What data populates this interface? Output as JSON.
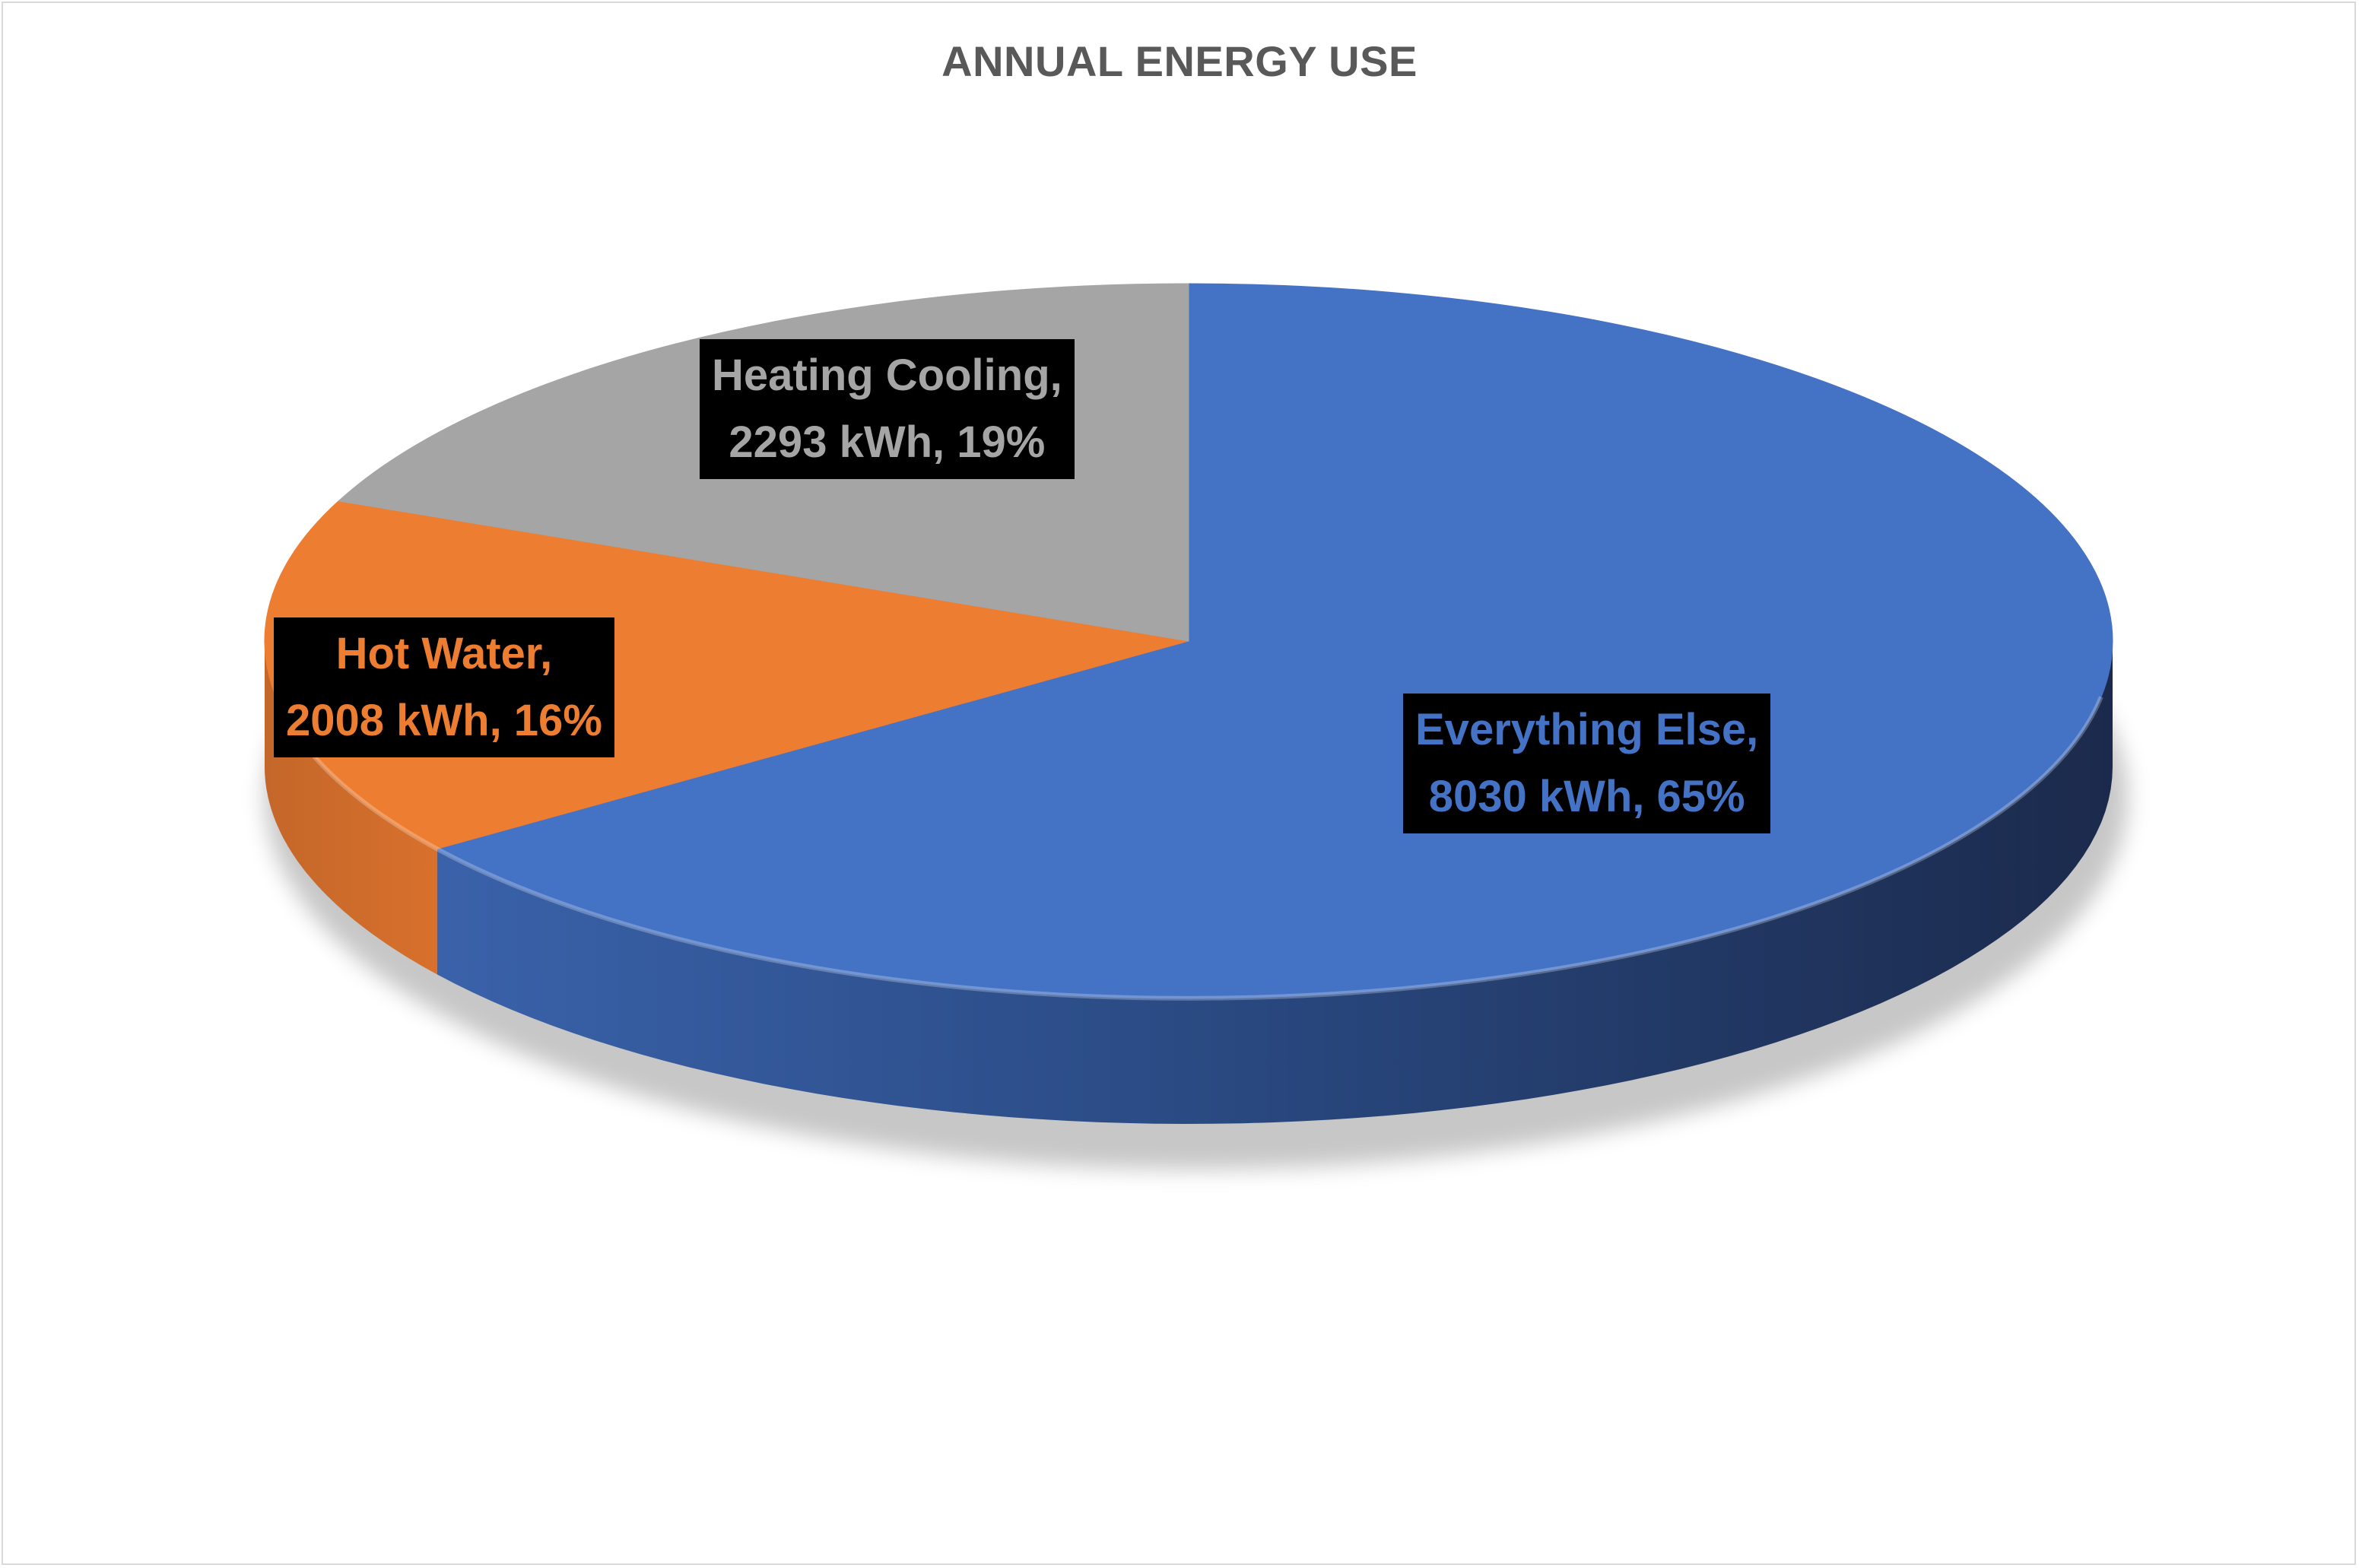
{
  "chart_data": {
    "type": "pie",
    "title": "ANNUAL ENERGY USE",
    "slices": [
      {
        "name": "Everything Else",
        "value": 8030,
        "percent": 65,
        "color": "#4472C4",
        "line1": "Everything Else,",
        "line2": "8030 kWh, 65%"
      },
      {
        "name": "Hot Water",
        "value": 2008,
        "percent": 16,
        "color": "#ED7D31",
        "line1": "Hot Water,",
        "line2": "2008 kWh, 16%"
      },
      {
        "name": "Heating Cooling",
        "value": 2293,
        "percent": 19,
        "color": "#A5A5A5",
        "line1": "Heating Cooling,",
        "line2": "2293 kWh, 19%"
      }
    ],
    "unit": "kWh",
    "style": "3d-pie",
    "legend": "none",
    "label_background": "#000000"
  }
}
